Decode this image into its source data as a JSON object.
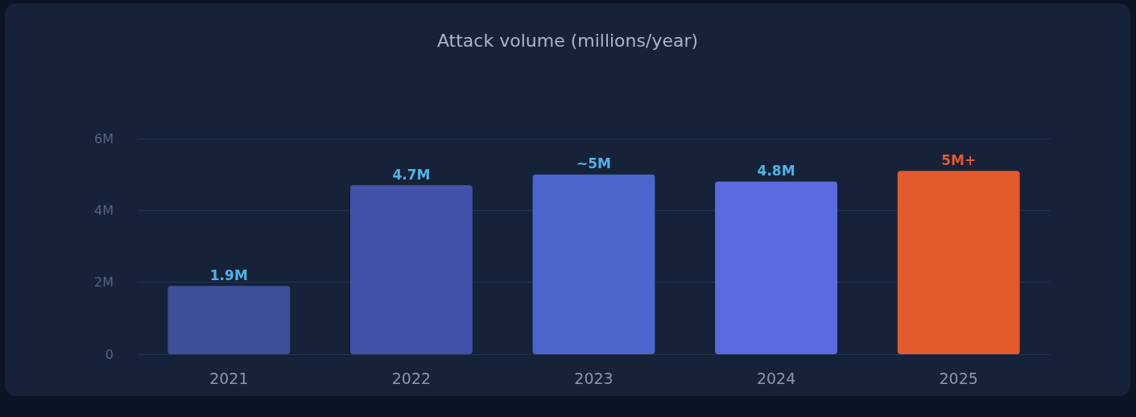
{
  "chart_data": {
    "type": "bar",
    "title": "Attack volume (millions/year)",
    "categories": [
      "2021",
      "2022",
      "2023",
      "2024",
      "2025"
    ],
    "values": [
      1.9,
      4.7,
      5,
      4.8,
      5.1
    ],
    "value_labels": [
      "1.9M",
      "4.7M",
      "~5M",
      "4.8M",
      "5M+"
    ],
    "colors": [
      "#3f4f9a",
      "#4252a8",
      "#4a66cc",
      "#5a6be0",
      "#e35a2c"
    ],
    "ylim": [
      0,
      6
    ],
    "yticks": [
      0,
      {
        "value": 2,
        "label": "2M"
      },
      {
        "value": 4,
        "label": "4M"
      },
      {
        "value": 6,
        "label": "6M"
      }
    ],
    "grid": "y"
  }
}
